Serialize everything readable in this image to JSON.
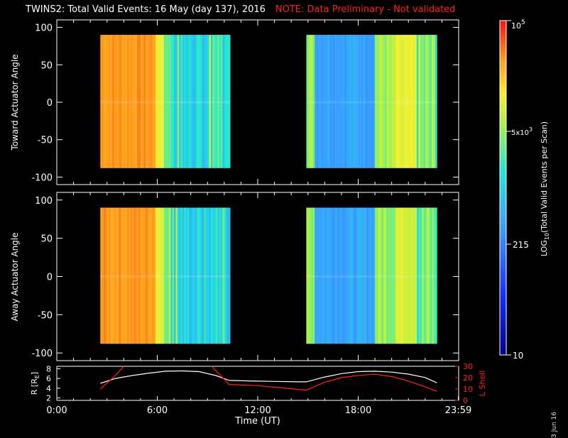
{
  "header": {
    "title": "TWINS2: Total Valid Events: 16 May (day 137), 2016",
    "note": "NOTE: Data Preliminary - Not validated"
  },
  "stamp": {
    "date": "3 Jun 16"
  },
  "colors": {
    "background": "#000000",
    "axis": "#ffffff",
    "note": "#ff2020",
    "lshell": "#ff2020",
    "range": "#ffffff"
  },
  "chart_data": [
    {
      "type": "heatmap",
      "panel": "toward",
      "ylabel": "Toward Actuator Angle",
      "ylim": [
        -110,
        110
      ],
      "yticks": [
        100,
        50,
        0,
        -50,
        -100
      ],
      "x_range_hours": [
        0,
        24
      ],
      "data_angle_range": [
        -88,
        90
      ],
      "segments": [
        {
          "start_hour": 2.6,
          "end_hour": 10.35
        },
        {
          "start_hour": 14.9,
          "end_hour": 22.7
        }
      ],
      "colormap_ref": "colorbar"
    },
    {
      "type": "heatmap",
      "panel": "away",
      "ylabel": "Away Actuator Angle",
      "ylim": [
        -110,
        110
      ],
      "yticks": [
        100,
        50,
        0,
        -50,
        -100
      ],
      "x_range_hours": [
        0,
        24
      ],
      "data_angle_range": [
        -88,
        90
      ],
      "segments": [
        {
          "start_hour": 2.6,
          "end_hour": 10.35
        },
        {
          "start_hour": 14.9,
          "end_hour": 22.7
        }
      ],
      "colormap_ref": "colorbar"
    },
    {
      "type": "line",
      "panel": "orbit",
      "xlabel": "Time (UT)",
      "xticks": [
        0,
        6,
        12,
        18,
        23.98
      ],
      "xtick_labels": [
        "0:00",
        "6:00",
        "12:00",
        "18:00",
        "23:59"
      ],
      "left_axis": {
        "label": "R [RE]",
        "ylim": [
          1.5,
          8.5
        ],
        "ticks": [
          2,
          4,
          6,
          8
        ]
      },
      "right_axis": {
        "label": "L Shell",
        "ylim": [
          0,
          30
        ],
        "ticks": [
          0,
          10,
          20,
          30
        ]
      },
      "series": [
        {
          "axis": "left",
          "x": [
            2.6,
            3.5,
            4.5,
            5.5,
            6.5,
            7.5,
            8.5,
            9.5,
            10.3,
            11.5,
            13,
            14.5,
            14.9,
            16,
            17,
            18,
            19,
            20,
            21,
            22,
            22.7
          ],
          "y": [
            5.0,
            6.0,
            6.6,
            7.1,
            7.5,
            7.55,
            7.4,
            6.6,
            5.6,
            5.5,
            5.4,
            5.3,
            5.3,
            6.3,
            7.0,
            7.4,
            7.5,
            7.3,
            6.9,
            6.2,
            5.1
          ]
        },
        {
          "axis": "right",
          "x": [
            2.6,
            3.5,
            4.0
          ],
          "y": [
            10,
            22,
            30
          ]
        },
        {
          "axis": "right",
          "x": [
            9.25,
            10.3,
            12,
            14.9,
            16,
            17,
            18,
            19,
            20,
            21,
            22,
            22.7
          ],
          "y": [
            30,
            14,
            13,
            9,
            16,
            20,
            22,
            23,
            21,
            17,
            12,
            8
          ]
        }
      ]
    },
    {
      "type": "colorbar",
      "label": "LOG10(Total Valid Events per Scan)",
      "tick_labels": [
        "10^5",
        "5x10^3",
        "215",
        "10"
      ],
      "tick_values": [
        100000,
        5000,
        215,
        10
      ],
      "scale": "log",
      "range": [
        10,
        100000
      ]
    }
  ],
  "labels": {
    "toward_ylabel": "Toward Actuator Angle",
    "away_ylabel": "Away Actuator Angle",
    "orbit_left_label": "R [R",
    "orbit_left_sub": "E",
    "orbit_left_close": "]",
    "orbit_right_label": "L Shell",
    "time_label": "Time (UT)",
    "colorbar_label_pre": "LOG",
    "colorbar_label_sub": "10",
    "colorbar_label_post": "(Total Valid Events per Scan)",
    "cb_top": "10",
    "cb_top_exp": "5",
    "cb_mid_mant": "5x",
    "cb_mid_base": "10",
    "cb_mid_exp": "3",
    "cb_215": "215",
    "cb_10": "10"
  }
}
